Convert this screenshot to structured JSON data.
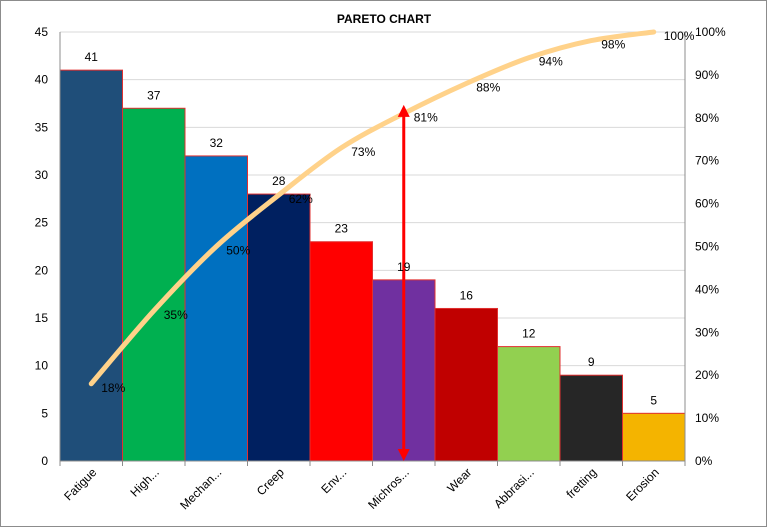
{
  "chart_data": {
    "type": "bar",
    "title": "PARETO CHART",
    "categories": [
      "Fatigue",
      "High...",
      "Mechan...",
      "Creep",
      "Env...",
      "Michros...",
      "Wear",
      "Abbrasi...",
      "fretting",
      "Erosion"
    ],
    "values": [
      41,
      37,
      32,
      28,
      23,
      19,
      16,
      12,
      9,
      5
    ],
    "bar_colors": [
      "#1f4e79",
      "#00b050",
      "#0070c0",
      "#002060",
      "#ff0000",
      "#7030a0",
      "#c00000",
      "#92d050",
      "#262626",
      "#f4b400"
    ],
    "cumulative": {
      "values": [
        18,
        35,
        50,
        62,
        73,
        81,
        88,
        94,
        98,
        100
      ],
      "labels": [
        "18%",
        "35%",
        "50%",
        "62%",
        "73%",
        "81%",
        "88%",
        "94%",
        "98%",
        "100%"
      ],
      "color": "#ffd28a"
    },
    "ylim": [
      0,
      45
    ],
    "y_ticks": [
      "0",
      "5",
      "10",
      "15",
      "20",
      "25",
      "30",
      "35",
      "40",
      "45"
    ],
    "y2lim": [
      0,
      100
    ],
    "y2_ticks": [
      "0%",
      "10%",
      "20%",
      "30%",
      "40%",
      "50%",
      "60%",
      "70%",
      "80%",
      "90%",
      "100%"
    ],
    "annotation": {
      "type": "double-arrow",
      "category": "Michros...",
      "from_percent": 0,
      "to_percent": 83,
      "color": "#ff0000"
    },
    "bar_edge_color": "#e03030",
    "grid": true
  }
}
